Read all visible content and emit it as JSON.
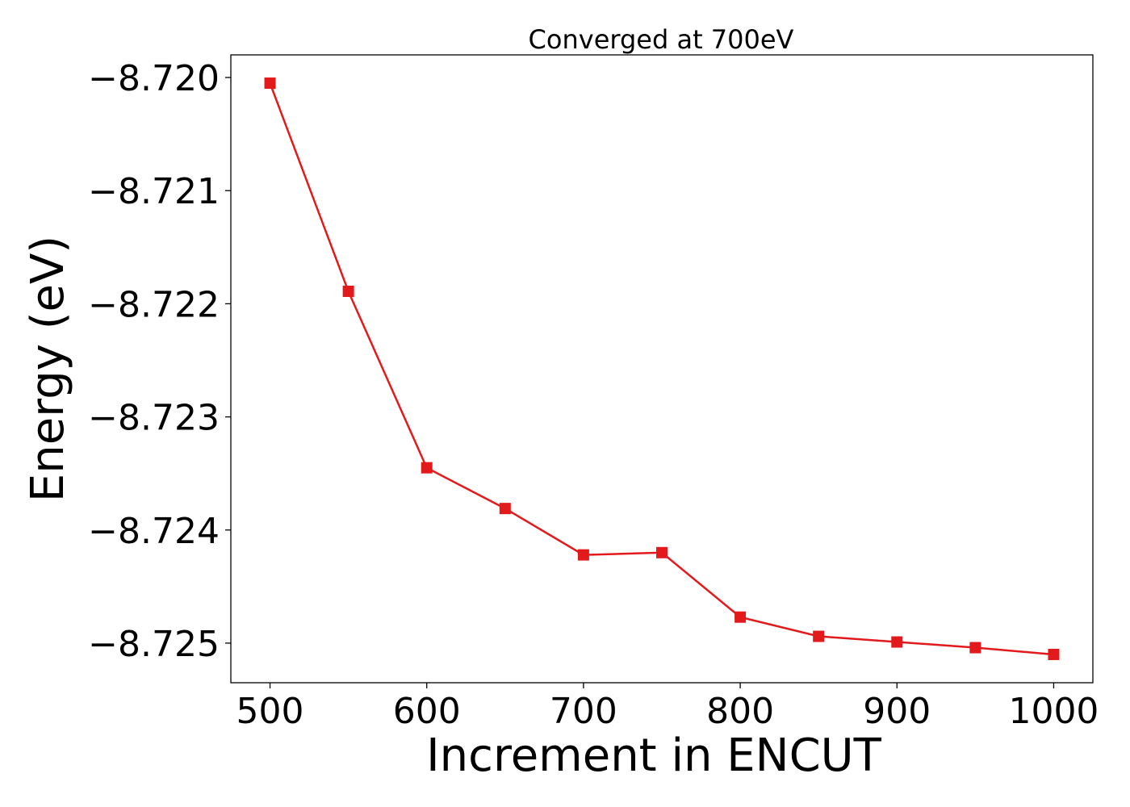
{
  "chart_data": {
    "type": "line",
    "title": "Converged at 700eV",
    "xlabel": "Increment in ENCUT",
    "ylabel": "Energy (eV)",
    "xlim": [
      475,
      1025
    ],
    "ylim": [
      -8.72535,
      -8.7198
    ],
    "xticks": [
      500,
      600,
      700,
      800,
      900,
      1000
    ],
    "xtick_labels": [
      "500",
      "600",
      "700",
      "800",
      "900",
      "1000"
    ],
    "yticks": [
      -8.72,
      -8.721,
      -8.722,
      -8.723,
      -8.724,
      -8.725
    ],
    "ytick_labels": [
      "−8.720",
      "−8.721",
      "−8.722",
      "−8.723",
      "−8.724",
      "−8.725"
    ],
    "grid": false,
    "series": [
      {
        "color": "#e31a1c",
        "marker": "square",
        "x": [
          500,
          550,
          600,
          650,
          700,
          750,
          800,
          850,
          900,
          950,
          1000
        ],
        "y": [
          -8.72005,
          -8.72189,
          -8.72345,
          -8.72381,
          -8.72422,
          -8.7242,
          -8.72477,
          -8.72494,
          -8.72499,
          -8.72504,
          -8.7251
        ]
      }
    ]
  }
}
